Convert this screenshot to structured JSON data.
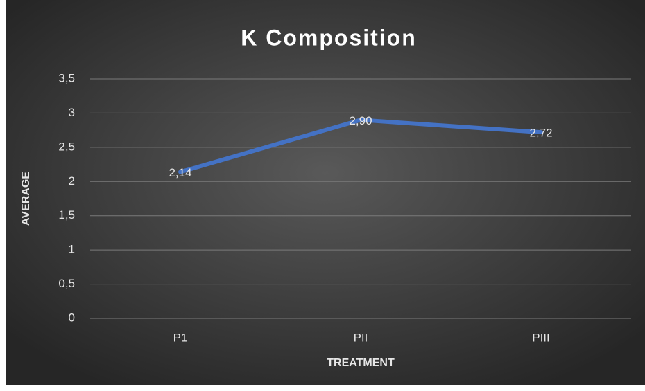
{
  "chart_data": {
    "type": "line",
    "title": "K Composition",
    "x_label": "TREATMENT",
    "y_label": "AVERAGE",
    "categories": [
      "P1",
      "PII",
      "PIII"
    ],
    "series": [
      {
        "name": "K",
        "color": "#4472c4",
        "values": [
          2.14,
          2.9,
          2.72
        ],
        "value_labels": [
          "2,14",
          "2,90",
          "2,72"
        ]
      }
    ],
    "ylim": [
      0,
      3.5
    ],
    "yticks": [
      0,
      {
        "value": 0.5,
        "label": "0,5"
      },
      1,
      {
        "value": 1.5,
        "label": "1,5"
      },
      2,
      {
        "value": 2.5,
        "label": "2,5"
      },
      3,
      {
        "value": 3.5,
        "label": "3,5"
      }
    ],
    "grid": true
  }
}
